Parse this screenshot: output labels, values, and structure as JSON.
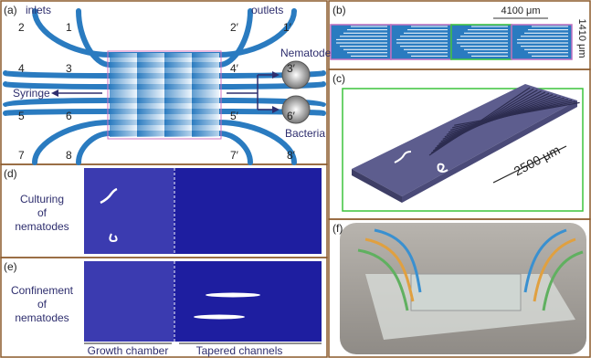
{
  "panel_labels": [
    "(a)",
    "(b)",
    "(c)",
    "(d)",
    "(e)",
    "(f)"
  ],
  "a": {
    "inlets": "inlets",
    "outlets": "outlets",
    "inlet_ports": [
      "2",
      "1",
      "4",
      "3",
      "5",
      "6",
      "7",
      "8"
    ],
    "outlet_ports": [
      "2′",
      "1′",
      "4′",
      "3′",
      "5′",
      "6′",
      "7′",
      "8′"
    ],
    "syringe": "Syringe",
    "nematodes": "Nematodes",
    "bacteria": "Bacteria"
  },
  "b": {
    "width": "4100 μm",
    "height": "1410 μm"
  },
  "c": {
    "length": "2500 μm"
  },
  "d": {
    "caption": [
      "Culturing",
      "of",
      "nematodes"
    ]
  },
  "e": {
    "caption": [
      "Confinement",
      "of",
      "nematodes"
    ]
  },
  "bottom": {
    "growth_chamber": "Growth chamber",
    "tapered_channels": "Tapered channels"
  }
}
